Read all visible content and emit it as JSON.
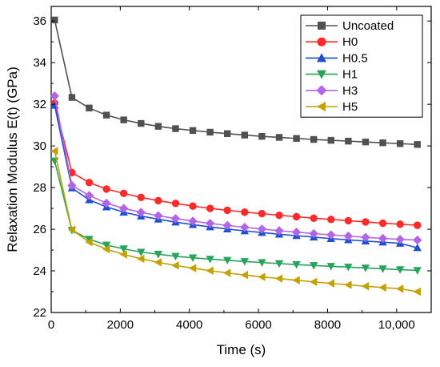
{
  "chart_data": {
    "type": "line",
    "title": "",
    "xlabel": "Time (s)",
    "ylabel": "Relaxation Modulus E(t) (GPa)",
    "xlim": [
      0,
      11000
    ],
    "ylim": [
      22,
      36.7
    ],
    "xticks": [
      0,
      2000,
      4000,
      6000,
      8000,
      10000
    ],
    "xtick_labels": [
      "0",
      "2000",
      "4000",
      "6000",
      "8000",
      "10,000"
    ],
    "yticks": [
      22,
      24,
      26,
      28,
      30,
      32,
      34,
      36
    ],
    "ytick_labels": [
      "22",
      "24",
      "26",
      "28",
      "30",
      "32",
      "34",
      "36"
    ],
    "grid": false,
    "legend_position": "top-right",
    "series": [
      {
        "name": "Uncoated",
        "color": "#505050",
        "marker": "square",
        "x": [
          100,
          600,
          1100,
          1600,
          2100,
          2600,
          3100,
          3600,
          4100,
          4600,
          5100,
          5600,
          6100,
          6600,
          7100,
          7600,
          8100,
          8600,
          9100,
          9600,
          10100,
          10600
        ],
        "y": [
          36.05,
          32.33,
          31.82,
          31.48,
          31.25,
          31.08,
          30.94,
          30.83,
          30.74,
          30.66,
          30.59,
          30.52,
          30.46,
          30.41,
          30.36,
          30.31,
          30.27,
          30.23,
          30.19,
          30.15,
          30.11,
          30.07
        ]
      },
      {
        "name": "H0",
        "color": "#ff2a2a",
        "marker": "circle",
        "x": [
          100,
          600,
          1100,
          1600,
          2100,
          2600,
          3100,
          3600,
          4100,
          4600,
          5100,
          5600,
          6100,
          6600,
          7100,
          7600,
          8100,
          8600,
          9100,
          9600,
          10100,
          10600
        ],
        "y": [
          32.05,
          28.72,
          28.24,
          27.93,
          27.72,
          27.53,
          27.37,
          27.24,
          27.11,
          27.0,
          26.91,
          26.82,
          26.75,
          26.67,
          26.6,
          26.53,
          26.47,
          26.41,
          26.35,
          26.29,
          26.24,
          26.19
        ]
      },
      {
        "name": "H0.5",
        "color": "#1f4fd1",
        "marker": "triangle-up",
        "x": [
          100,
          600,
          1100,
          1600,
          2100,
          2600,
          3100,
          3600,
          4100,
          4600,
          5100,
          5600,
          6100,
          6600,
          7100,
          7600,
          8100,
          8600,
          9100,
          9600,
          10100,
          10600
        ],
        "y": [
          31.95,
          27.98,
          27.41,
          27.07,
          26.82,
          26.63,
          26.48,
          26.34,
          26.22,
          26.11,
          26.01,
          25.92,
          25.84,
          25.76,
          25.69,
          25.62,
          25.55,
          25.49,
          25.43,
          25.38,
          25.32,
          25.11
        ]
      },
      {
        "name": "H1",
        "color": "#27a35c",
        "marker": "triangle-down",
        "x": [
          100,
          600,
          1100,
          1600,
          2100,
          2600,
          3100,
          3600,
          4100,
          4600,
          5100,
          5600,
          6100,
          6600,
          7100,
          7600,
          8100,
          8600,
          9100,
          9600,
          10100,
          10600
        ],
        "y": [
          29.28,
          25.95,
          25.52,
          25.24,
          25.06,
          24.9,
          24.8,
          24.7,
          24.63,
          24.56,
          24.51,
          24.45,
          24.4,
          24.35,
          24.3,
          24.26,
          24.22,
          24.18,
          24.14,
          24.1,
          24.06,
          24.02
        ]
      },
      {
        "name": "H3",
        "color": "#b266e6",
        "marker": "diamond",
        "x": [
          100,
          600,
          1100,
          1600,
          2100,
          2600,
          3100,
          3600,
          4100,
          4600,
          5100,
          5600,
          6100,
          6600,
          7100,
          7600,
          8100,
          8600,
          9100,
          9600,
          10100,
          10600
        ],
        "y": [
          32.4,
          28.1,
          27.62,
          27.25,
          27.0,
          26.81,
          26.65,
          26.51,
          26.39,
          26.28,
          26.18,
          26.09,
          26.01,
          25.93,
          25.86,
          25.79,
          25.73,
          25.67,
          25.61,
          25.56,
          25.51,
          25.48
        ]
      },
      {
        "name": "H5",
        "color": "#c2a100",
        "marker": "triangle-left",
        "x": [
          100,
          600,
          1100,
          1600,
          2100,
          2600,
          3100,
          3600,
          4100,
          4600,
          5100,
          5600,
          6100,
          6600,
          7100,
          7600,
          8100,
          8600,
          9100,
          9600,
          10100,
          10600
        ],
        "y": [
          29.75,
          25.97,
          25.38,
          25.04,
          24.79,
          24.58,
          24.41,
          24.26,
          24.13,
          24.01,
          23.9,
          23.8,
          23.71,
          23.63,
          23.55,
          23.47,
          23.4,
          23.33,
          23.26,
          23.2,
          23.14,
          23.0
        ]
      }
    ]
  }
}
